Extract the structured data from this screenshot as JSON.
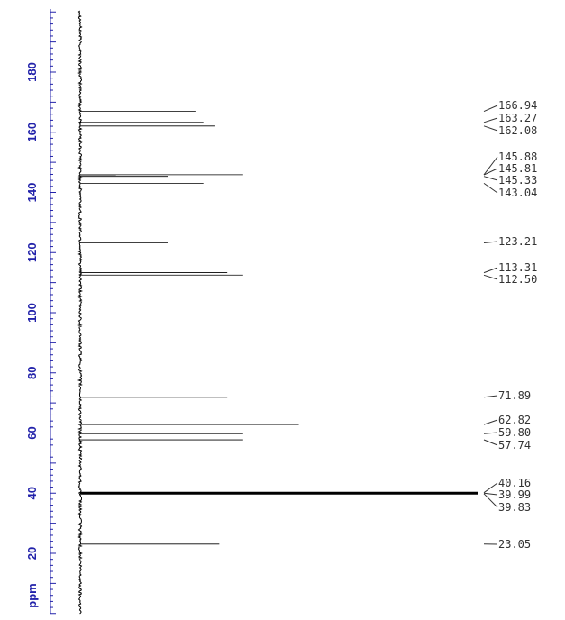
{
  "chart_data": {
    "type": "line",
    "title": "",
    "xlabel": "",
    "ylabel": "",
    "ylim": [
      0,
      201
    ],
    "tick_values": [
      20,
      40,
      60,
      80,
      100,
      120,
      140,
      160,
      180
    ],
    "tick_labels": [
      "20",
      "40",
      "60",
      "80",
      "100",
      "120",
      "140",
      "160",
      "180"
    ],
    "unit_label": "ppm",
    "axis_color": "#2222aa",
    "peak_color": "#000000",
    "peaks": [
      {
        "ppm": 166.94,
        "intensity": 0.29
      },
      {
        "ppm": 163.27,
        "intensity": 0.31
      },
      {
        "ppm": 162.08,
        "intensity": 0.34
      },
      {
        "ppm": 145.88,
        "intensity": 0.41
      },
      {
        "ppm": 145.81,
        "intensity": 0.09
      },
      {
        "ppm": 145.33,
        "intensity": 0.22
      },
      {
        "ppm": 143.04,
        "intensity": 0.31
      },
      {
        "ppm": 123.21,
        "intensity": 0.22
      },
      {
        "ppm": 113.31,
        "intensity": 0.37
      },
      {
        "ppm": 112.5,
        "intensity": 0.41
      },
      {
        "ppm": 71.89,
        "intensity": 0.37
      },
      {
        "ppm": 62.82,
        "intensity": 0.55
      },
      {
        "ppm": 59.8,
        "intensity": 0.41
      },
      {
        "ppm": 57.74,
        "intensity": 0.41
      },
      {
        "ppm": 40.16,
        "intensity": 0.43
      },
      {
        "ppm": 39.99,
        "intensity": 1.0
      },
      {
        "ppm": 39.83,
        "intensity": 0.43
      },
      {
        "ppm": 23.05,
        "intensity": 0.35
      }
    ],
    "peak_labels": [
      "166.94",
      "163.27",
      "162.08",
      "145.88",
      "145.81",
      "145.33",
      "143.04",
      "123.21",
      "113.31",
      "112.50",
      "71.89",
      "62.82",
      "59.80",
      "57.74",
      "40.16",
      "39.99",
      "39.83",
      "23.05"
    ]
  }
}
